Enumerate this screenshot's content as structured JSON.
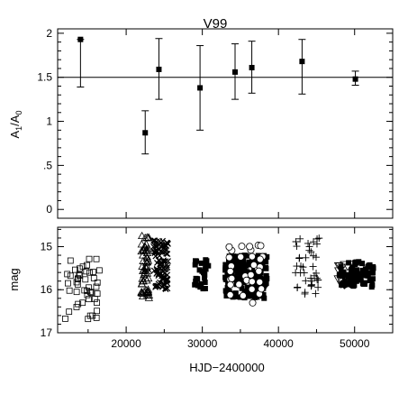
{
  "chart_data": [
    {
      "type": "scatter",
      "title": "V99",
      "ylabel_main": "A",
      "ylabel_sub1": "1",
      "ylabel_mid": "/A",
      "ylabel_sub2": "0",
      "xlim": [
        11000,
        55000
      ],
      "ylim": [
        -0.1,
        2.05
      ],
      "yticks": [
        "0",
        ".5",
        "1",
        "1.5",
        "2"
      ],
      "ytick_values": [
        0,
        0.5,
        1,
        1.5,
        2
      ],
      "reference_line": 1.5,
      "grid": false,
      "points": [
        {
          "x": 14000,
          "y": 1.93,
          "err_low": 1.39,
          "err_high": 1.93
        },
        {
          "x": 22500,
          "y": 0.87,
          "err_low": 0.63,
          "err_high": 1.12
        },
        {
          "x": 24300,
          "y": 1.59,
          "err_low": 1.25,
          "err_high": 1.94
        },
        {
          "x": 29700,
          "y": 1.38,
          "err_low": 0.9,
          "err_high": 1.86
        },
        {
          "x": 34300,
          "y": 1.56,
          "err_low": 1.25,
          "err_high": 1.88
        },
        {
          "x": 36500,
          "y": 1.61,
          "err_low": 1.32,
          "err_high": 1.91
        },
        {
          "x": 43100,
          "y": 1.68,
          "err_low": 1.31,
          "err_high": 1.93
        },
        {
          "x": 50100,
          "y": 1.48,
          "err_low": 1.41,
          "err_high": 1.57
        }
      ]
    },
    {
      "type": "scatter",
      "xlabel": "HJD−2400000",
      "ylabel": "mag",
      "xlim": [
        11000,
        55000
      ],
      "ylim": [
        17.0,
        14.55
      ],
      "inverted_y": true,
      "xticks": [
        "20000",
        "30000",
        "40000",
        "50000"
      ],
      "xtick_values": [
        20000,
        30000,
        40000,
        50000
      ],
      "yticks": [
        "15",
        "16",
        "17"
      ],
      "ytick_values": [
        15,
        16,
        17
      ],
      "grid": false,
      "series": [
        {
          "marker": "open-square",
          "x_range": [
            12000,
            16500
          ],
          "y_range": [
            15.2,
            16.8
          ],
          "n": 46
        },
        {
          "marker": "triangle",
          "x_range": [
            22000,
            23000
          ],
          "y_range": [
            14.75,
            16.2
          ],
          "n": 60
        },
        {
          "marker": "cross",
          "x_range": [
            23600,
            25500
          ],
          "y_range": [
            14.85,
            16.0
          ],
          "n": 90
        },
        {
          "marker": "filled-square",
          "x_range": [
            29000,
            30800
          ],
          "y_range": [
            15.3,
            16.0
          ],
          "n": 28
        },
        {
          "marker": "filled-square",
          "x_range": [
            33000,
            38500
          ],
          "y_range": [
            15.2,
            16.2
          ],
          "n": 210
        },
        {
          "marker": "open-circle",
          "x_range": [
            33500,
            38000
          ],
          "y_range": [
            14.95,
            16.35
          ],
          "n": 34
        },
        {
          "marker": "plus",
          "x_range": [
            42000,
            45500
          ],
          "y_range": [
            14.75,
            16.15
          ],
          "n": 40
        },
        {
          "marker": "open-triangle-down",
          "x_range": [
            47800,
            49800
          ],
          "y_range": [
            15.3,
            15.9
          ],
          "n": 12
        },
        {
          "marker": "filled-square",
          "x_range": [
            48000,
            52500
          ],
          "y_range": [
            15.35,
            15.95
          ],
          "n": 70
        }
      ]
    }
  ]
}
